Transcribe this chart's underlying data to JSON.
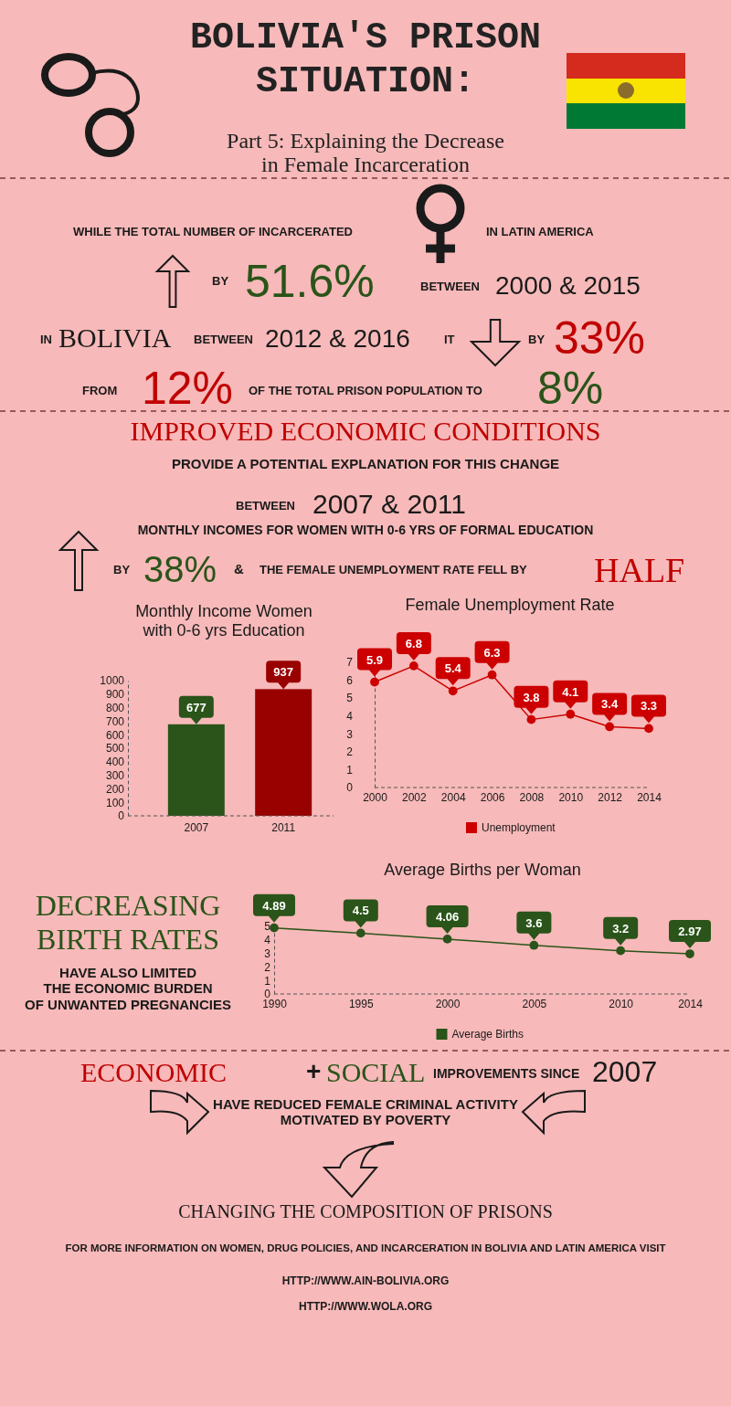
{
  "chart_data": [
    {
      "type": "other",
      "title": "BOLIVIA'S PRISON SITUATION:",
      "subtitle": "Part 5: Explaining the Decrease in Female Incarceration",
      "annotations": [
        "WHILE THE TOTAL NUMBER OF INCARCERATED",
        "IN LATIN AMERICA",
        "BY",
        "51.6%",
        "BETWEEN",
        "2000 & 2015",
        "IN",
        "BOLIVIA",
        "BETWEEN",
        "2012 & 2016",
        "IT",
        "BY",
        "33%",
        "FROM",
        "12%",
        "OF THE TOTAL PRISON POPULATION TO",
        "8%",
        "IMPROVED ECONOMIC CONDITIONS",
        "PROVIDE A POTENTIAL EXPLANATION FOR THIS CHANGE",
        "BETWEEN",
        "2007 & 2011",
        "MONTHLY INCOMES FOR WOMEN WITH 0-6 YRS OF FORMAL EDUCATION",
        "BY",
        "38%",
        "&",
        "THE FEMALE UNEMPLOYMENT RATE FELL BY",
        "HALF"
      ]
    },
    {
      "type": "bar",
      "title": "Monthly Income Women with 0-6 yrs Education",
      "categories": [
        "2007",
        "2011"
      ],
      "values": [
        677,
        937
      ],
      "colors": [
        "#2a5419",
        "#990000"
      ],
      "ylim": [
        0,
        1000
      ],
      "yticks": [
        0,
        100,
        200,
        300,
        400,
        500,
        600,
        700,
        800,
        900,
        1000
      ],
      "data_labels": true
    },
    {
      "type": "line",
      "title": "Female Unemployment Rate",
      "x": [
        2000,
        2002,
        2004,
        2006,
        2008,
        2010,
        2012,
        2014
      ],
      "series": [
        {
          "name": "Unemployment",
          "color": "#cc0000",
          "values": [
            5.9,
            6.8,
            5.4,
            6.3,
            3.8,
            4.1,
            3.4,
            3.3
          ]
        }
      ],
      "xlim": [
        2000,
        2014
      ],
      "xticks": [
        2000,
        2002,
        2004,
        2006,
        2008,
        2010,
        2012,
        2014
      ],
      "ylim": [
        0,
        7
      ],
      "yticks": [
        0,
        1,
        2,
        3,
        4,
        5,
        6,
        7
      ],
      "data_labels": true,
      "marker": "circle",
      "legend": "bottom"
    },
    {
      "type": "line",
      "title": "Average Births per Woman",
      "x": [
        1990,
        1995,
        2000,
        2005,
        2010,
        2014
      ],
      "series": [
        {
          "name": "Average Births",
          "color": "#2a5419",
          "values": [
            4.89,
            4.5,
            4.06,
            3.6,
            3.2,
            2.97
          ]
        }
      ],
      "xlim": [
        1990,
        2014
      ],
      "xticks": [
        1990,
        1995,
        2000,
        2005,
        2010,
        2014
      ],
      "ylim": [
        0,
        5
      ],
      "yticks": [
        0,
        1,
        2,
        3,
        4,
        5
      ],
      "data_labels": true,
      "marker": "circle",
      "legend": "bottom",
      "annotations": [
        "DECREASING BIRTH RATES",
        "HAVE ALSO LIMITED THE ECONOMIC BURDEN OF UNWANTED PREGNANCIES"
      ]
    },
    {
      "type": "other",
      "annotations": [
        "ECONOMIC",
        "+",
        "SOCIAL",
        "IMPROVEMENTS SINCE",
        "2007",
        "HAVE REDUCED FEMALE CRIMINAL ACTIVITY MOTIVATED BY POVERTY",
        "CHANGING THE COMPOSITION OF PRISONS",
        "FOR MORE INFORMATION ON WOMEN, DRUG POLICIES, AND INCARCERATION IN BOLIVIA AND LATIN AMERICA VISIT",
        "HTTP://WWW.AIN-BOLIVIA.ORG",
        "HTTP://WWW.WOLA.ORG"
      ]
    }
  ]
}
